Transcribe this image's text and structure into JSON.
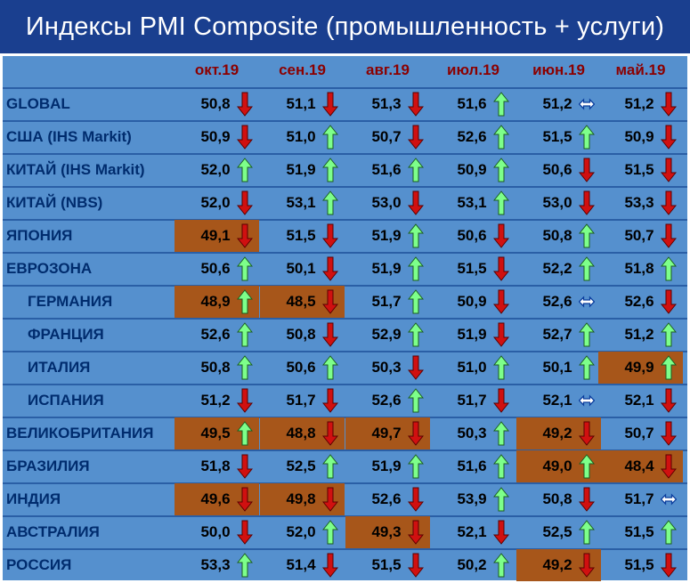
{
  "title": "Индексы PMI Composite (промышленность + услуги)",
  "colors": {
    "title_bg": "#1a3f8f",
    "table_bg": "#5590ce",
    "highlight": "#a7561a",
    "header_text": "#8b0000",
    "country_text": "#002c6e",
    "arrow_up": "#7dff8a",
    "arrow_down": "#d01010",
    "arrow_flat": "#0b3e9e"
  },
  "icons": {
    "up": "up-arrow-icon",
    "down": "down-arrow-icon",
    "flat": "left-right-arrow-icon"
  },
  "chart_data": {
    "type": "table",
    "columns": [
      "окт.19",
      "сен.19",
      "авг.19",
      "июл.19",
      "июн.19",
      "май.19"
    ],
    "rows": [
      {
        "name": "GLOBAL",
        "indent": false,
        "values": [
          "50,8",
          "51,1",
          "51,3",
          "51,6",
          "51,2",
          "51,2"
        ],
        "trend": [
          "down",
          "down",
          "down",
          "up",
          "flat",
          "down"
        ],
        "highlight": [
          false,
          false,
          false,
          false,
          false,
          false
        ]
      },
      {
        "name": "США (IHS Markit)",
        "indent": false,
        "values": [
          "50,9",
          "51,0",
          "50,7",
          "52,6",
          "51,5",
          "50,9"
        ],
        "trend": [
          "down",
          "up",
          "down",
          "up",
          "up",
          "down"
        ],
        "highlight": [
          false,
          false,
          false,
          false,
          false,
          false
        ]
      },
      {
        "name": "КИТАЙ (IHS Markit)",
        "indent": false,
        "values": [
          "52,0",
          "51,9",
          "51,6",
          "50,9",
          "50,6",
          "51,5"
        ],
        "trend": [
          "up",
          "up",
          "up",
          "up",
          "down",
          "down"
        ],
        "highlight": [
          false,
          false,
          false,
          false,
          false,
          false
        ]
      },
      {
        "name": "КИТАЙ (NBS)",
        "indent": false,
        "values": [
          "52,0",
          "53,1",
          "53,0",
          "53,1",
          "53,0",
          "53,3"
        ],
        "trend": [
          "down",
          "up",
          "down",
          "up",
          "down",
          "down"
        ],
        "highlight": [
          false,
          false,
          false,
          false,
          false,
          false
        ]
      },
      {
        "name": "ЯПОНИЯ",
        "indent": false,
        "values": [
          "49,1",
          "51,5",
          "51,9",
          "50,6",
          "50,8",
          "50,7"
        ],
        "trend": [
          "down",
          "down",
          "up",
          "down",
          "up",
          "down"
        ],
        "highlight": [
          true,
          false,
          false,
          false,
          false,
          false
        ]
      },
      {
        "name": "ЕВРОЗОНА",
        "indent": false,
        "values": [
          "50,6",
          "50,1",
          "51,9",
          "51,5",
          "52,2",
          "51,8"
        ],
        "trend": [
          "up",
          "down",
          "up",
          "down",
          "up",
          "up"
        ],
        "highlight": [
          false,
          false,
          false,
          false,
          false,
          false
        ]
      },
      {
        "name": "ГЕРМАНИЯ",
        "indent": true,
        "values": [
          "48,9",
          "48,5",
          "51,7",
          "50,9",
          "52,6",
          "52,6"
        ],
        "trend": [
          "up",
          "down",
          "up",
          "down",
          "flat",
          "down"
        ],
        "highlight": [
          true,
          true,
          false,
          false,
          false,
          false
        ]
      },
      {
        "name": "ФРАНЦИЯ",
        "indent": true,
        "values": [
          "52,6",
          "50,8",
          "52,9",
          "51,9",
          "52,7",
          "51,2"
        ],
        "trend": [
          "up",
          "down",
          "up",
          "down",
          "up",
          "up"
        ],
        "highlight": [
          false,
          false,
          false,
          false,
          false,
          false
        ]
      },
      {
        "name": "ИТАЛИЯ",
        "indent": true,
        "values": [
          "50,8",
          "50,6",
          "50,3",
          "51,0",
          "50,1",
          "49,9"
        ],
        "trend": [
          "up",
          "up",
          "down",
          "up",
          "up",
          "up"
        ],
        "highlight": [
          false,
          false,
          false,
          false,
          false,
          true
        ]
      },
      {
        "name": "ИСПАНИЯ",
        "indent": true,
        "values": [
          "51,2",
          "51,7",
          "52,6",
          "51,7",
          "52,1",
          "52,1"
        ],
        "trend": [
          "down",
          "down",
          "up",
          "down",
          "flat",
          "down"
        ],
        "highlight": [
          false,
          false,
          false,
          false,
          false,
          false
        ]
      },
      {
        "name": "ВЕЛИКОБРИТАНИЯ",
        "indent": false,
        "values": [
          "49,5",
          "48,8",
          "49,7",
          "50,3",
          "49,2",
          "50,7"
        ],
        "trend": [
          "up",
          "down",
          "down",
          "up",
          "down",
          "down"
        ],
        "highlight": [
          true,
          true,
          true,
          false,
          true,
          false
        ]
      },
      {
        "name": "БРАЗИЛИЯ",
        "indent": false,
        "values": [
          "51,8",
          "52,5",
          "51,9",
          "51,6",
          "49,0",
          "48,4"
        ],
        "trend": [
          "down",
          "up",
          "up",
          "up",
          "up",
          "down"
        ],
        "highlight": [
          false,
          false,
          false,
          false,
          true,
          true
        ]
      },
      {
        "name": "ИНДИЯ",
        "indent": false,
        "values": [
          "49,6",
          "49,8",
          "52,6",
          "53,9",
          "50,8",
          "51,7"
        ],
        "trend": [
          "down",
          "down",
          "down",
          "up",
          "down",
          "flat"
        ],
        "highlight": [
          true,
          true,
          false,
          false,
          false,
          false
        ]
      },
      {
        "name": "АВСТРАЛИЯ",
        "indent": false,
        "values": [
          "50,0",
          "52,0",
          "49,3",
          "52,1",
          "52,5",
          "51,5"
        ],
        "trend": [
          "down",
          "up",
          "down",
          "down",
          "up",
          "up"
        ],
        "highlight": [
          false,
          false,
          true,
          false,
          false,
          false
        ]
      },
      {
        "name": "РОССИЯ",
        "indent": false,
        "values": [
          "53,3",
          "51,4",
          "51,5",
          "50,2",
          "49,2",
          "51,5"
        ],
        "trend": [
          "up",
          "down",
          "down",
          "up",
          "down",
          "down"
        ],
        "highlight": [
          false,
          false,
          false,
          false,
          true,
          false
        ]
      }
    ]
  }
}
